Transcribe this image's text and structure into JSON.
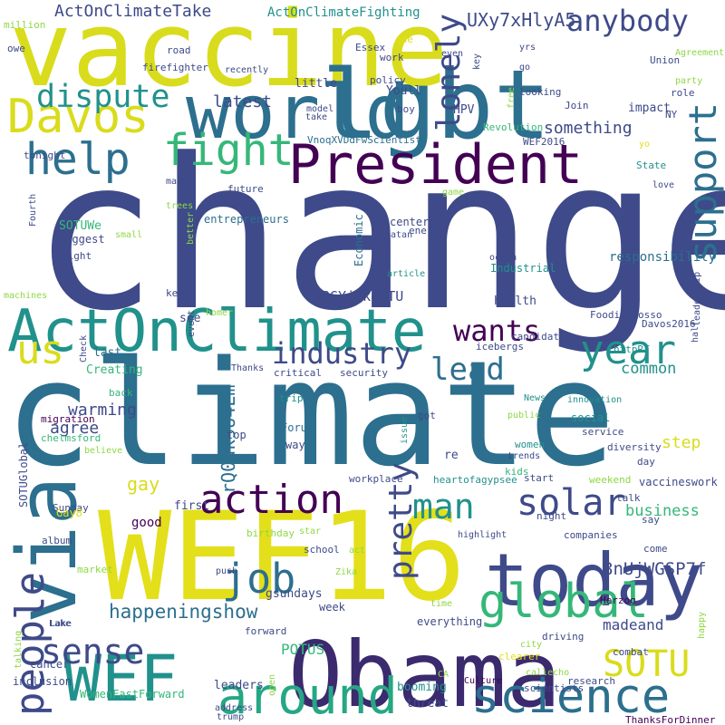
{
  "palette": {
    "yellow": "#e3df1a",
    "lightgreen": "#8fd744",
    "green": "#35b779",
    "teal": "#21918c",
    "blue": "#2c6f8e",
    "indigo": "#3e4a89",
    "purple": "#440154"
  },
  "words": [
    {
      "text": "change",
      "color": "#3e4a89",
      "rot": 0
    },
    {
      "text": "climate",
      "color": "#2c6f8e",
      "rot": 0
    },
    {
      "text": "WEF16",
      "color": "#e3df1a",
      "rot": 0
    },
    {
      "text": "Obama",
      "color": "#3b2a6e",
      "rot": 0
    },
    {
      "text": "vaccine",
      "color": "#d9dc1c",
      "rot": 0
    },
    {
      "text": "lgbt",
      "color": "#2c6f8e",
      "rot": 0
    },
    {
      "text": "world",
      "color": "#2c6f8e",
      "rot": 0
    },
    {
      "text": "President",
      "color": "#440154",
      "rot": 0
    },
    {
      "text": "ActOnClimate",
      "color": "#21918c",
      "rot": 0
    },
    {
      "text": "today",
      "color": "#3e4a89",
      "rot": 0
    },
    {
      "text": "WEF",
      "color": "#21918c",
      "rot": 0
    },
    {
      "text": "via",
      "color": "#2c6f8e",
      "rot": 90
    },
    {
      "text": "Davos",
      "color": "#d9dc1c",
      "rot": 0
    },
    {
      "text": "around",
      "color": "#26a784",
      "rot": 0
    },
    {
      "text": "science",
      "color": "#2c6f8e",
      "rot": 0
    },
    {
      "text": "global",
      "color": "#35b779",
      "rot": 0
    },
    {
      "text": "help",
      "color": "#2c6f8e",
      "rot": 0
    },
    {
      "text": "fight",
      "color": "#35b779",
      "rot": 0
    },
    {
      "text": "support",
      "color": "#2c6f8e",
      "rot": 90
    },
    {
      "text": "dispute",
      "color": "#21918c",
      "rot": 0
    },
    {
      "text": "anybody",
      "color": "#3e4a89",
      "rot": 0
    },
    {
      "text": "action",
      "color": "#440154",
      "rot": 0
    },
    {
      "text": "solar",
      "color": "#3e4a89",
      "rot": 0
    },
    {
      "text": "man",
      "color": "#21918c",
      "rot": 0
    },
    {
      "text": "SOTU",
      "color": "#d9dc1c",
      "rot": 0
    },
    {
      "text": "year",
      "color": "#21918c",
      "rot": 0
    },
    {
      "text": "wants",
      "color": "#440154",
      "rot": 0
    },
    {
      "text": "job",
      "color": "#2c6f8e",
      "rot": 0
    },
    {
      "text": "sense",
      "color": "#3e4a89",
      "rot": 0
    },
    {
      "text": "people",
      "color": "#3e4a89",
      "rot": 90
    },
    {
      "text": "us",
      "color": "#d9dc1c",
      "rot": 0
    },
    {
      "text": "industry",
      "color": "#3e4a89",
      "rot": 0
    },
    {
      "text": "lead",
      "color": "#2c6f8e",
      "rot": 0
    },
    {
      "text": "pretty",
      "color": "#3e4a89",
      "rot": 90
    },
    {
      "text": "lonely",
      "color": "#3e4a89",
      "rot": 90
    },
    {
      "text": "UXy7xHlyA5",
      "color": "#3e4a89",
      "rot": 0
    },
    {
      "text": "ActOnClimateTake",
      "color": "#3e4a89",
      "rot": 0
    },
    {
      "text": "ActOnClimateFighting",
      "color": "#21918c",
      "rot": 0
    },
    {
      "text": "happeningshow",
      "color": "#2c6f8e",
      "rot": 0
    },
    {
      "text": "8nUjWGSP7f",
      "color": "#3e4a89",
      "rot": 0
    },
    {
      "text": "madeand",
      "color": "#3e4a89",
      "rot": 0
    },
    {
      "text": "rQ0dk9U4Em",
      "color": "#2c6f8e",
      "rot": 90
    },
    {
      "text": "8GYjQkeaTU",
      "color": "#3e4a89",
      "rot": 0
    },
    {
      "text": "gay",
      "color": "#d9dc1c",
      "rot": 0
    },
    {
      "text": "agree",
      "color": "#3e4a89",
      "rot": 0
    },
    {
      "text": "step",
      "color": "#d9dc1c",
      "rot": 0
    },
    {
      "text": "warming",
      "color": "#3e4a89",
      "rot": 0
    },
    {
      "text": "latest",
      "color": "#3e4a89",
      "rot": 0
    },
    {
      "text": "something",
      "color": "#3e4a89",
      "rot": 0
    },
    {
      "text": "responsibility",
      "color": "#2c6f8e",
      "rot": 0
    },
    {
      "text": "business",
      "color": "#35b779",
      "rot": 0
    },
    {
      "text": "common",
      "color": "#21918c",
      "rot": 0
    },
    {
      "text": "POTUS",
      "color": "#35b779",
      "rot": 0
    },
    {
      "text": "leaders",
      "color": "#3e4a89",
      "rot": 0
    },
    {
      "text": "WomenFastForward",
      "color": "#35b779",
      "rot": 0
    },
    {
      "text": "gsundays",
      "color": "#3e4a89",
      "rot": 0
    },
    {
      "text": "booming",
      "color": "#21918c",
      "rot": 0
    },
    {
      "text": "threat",
      "color": "#3e4a89",
      "rot": 0
    },
    {
      "text": "Youll",
      "color": "#3e4a89",
      "rot": 0
    },
    {
      "text": "HPV",
      "color": "#3e4a89",
      "rot": 0
    },
    {
      "text": "little",
      "color": "#3e4a89",
      "rot": 0
    },
    {
      "text": "impact",
      "color": "#3e4a89",
      "rot": 0
    },
    {
      "text": "Creating",
      "color": "#35b779",
      "rot": 0
    },
    {
      "text": "last",
      "color": "#2c6f8e",
      "rot": 0
    },
    {
      "text": "health",
      "color": "#3e4a89",
      "rot": 0
    },
    {
      "text": "SOTUWe",
      "color": "#35b779",
      "rot": 0
    },
    {
      "text": "biggest",
      "color": "#3e4a89",
      "rot": 0
    },
    {
      "text": "entrepreneurs",
      "color": "#2c6f8e",
      "rot": 0
    },
    {
      "text": "see",
      "color": "#3e4a89",
      "rot": 0
    },
    {
      "text": "Economic",
      "color": "#2c6f8e",
      "rot": 90
    },
    {
      "text": "Industrial",
      "color": "#21918c",
      "rot": 0
    },
    {
      "text": "center",
      "color": "#3e4a89",
      "rot": 0
    },
    {
      "text": "energy",
      "color": "#3e4a89",
      "rot": 0
    },
    {
      "text": "Revolution",
      "color": "#35b779",
      "rot": 0
    },
    {
      "text": "VnoqXVDdFwScientists",
      "color": "#2c6f8e",
      "rot": 0
    },
    {
      "text": "WEF2016",
      "color": "#3e4a89",
      "rot": 0
    },
    {
      "text": "Join",
      "color": "#3e4a89",
      "rot": 0
    },
    {
      "text": "boy",
      "color": "#3e4a89",
      "rot": 0
    },
    {
      "text": "policy",
      "color": "#3e4a89",
      "rot": 0
    },
    {
      "text": "Essex",
      "color": "#3e4a89",
      "rot": 0
    },
    {
      "text": "work",
      "color": "#3e4a89",
      "rot": 0
    },
    {
      "text": "looking",
      "color": "#3e4a89",
      "rot": 0
    },
    {
      "text": "role",
      "color": "#3e4a89",
      "rot": 0
    },
    {
      "text": "NY",
      "color": "#3e4a89",
      "rot": 0
    },
    {
      "text": "Union",
      "color": "#3e4a89",
      "rot": 0
    },
    {
      "text": "party",
      "color": "#8fd744",
      "rot": 0
    },
    {
      "text": "Agreement",
      "color": "#8fd744",
      "rot": 0
    },
    {
      "text": "yrs",
      "color": "#3e4a89",
      "rot": 0
    },
    {
      "text": "go",
      "color": "#3e4a89",
      "rot": 0
    },
    {
      "text": "even",
      "color": "#3e4a89",
      "rot": 0
    },
    {
      "text": "key",
      "color": "#3e4a89",
      "rot": 90
    },
    {
      "text": "one",
      "color": "#e3df1a",
      "rot": 0
    },
    {
      "text": "million",
      "color": "#8fd744",
      "rot": 0
    },
    {
      "text": "road",
      "color": "#3e4a89",
      "rot": 0
    },
    {
      "text": "recently",
      "color": "#3e4a89",
      "rot": 0
    },
    {
      "text": "owe",
      "color": "#3e4a89",
      "rot": 0
    },
    {
      "text": "model",
      "color": "#3e4a89",
      "rot": 0
    },
    {
      "text": "take",
      "color": "#3e4a89",
      "rot": 0
    },
    {
      "text": "firefighter",
      "color": "#3e4a89",
      "rot": 0
    },
    {
      "text": "free",
      "color": "#8fd744",
      "rot": 90
    },
    {
      "text": "yo",
      "color": "#e3df1a",
      "rot": 0
    },
    {
      "text": "tonight",
      "color": "#3e4a89",
      "rot": 0
    },
    {
      "text": "makes",
      "color": "#3e4a89",
      "rot": 0
    },
    {
      "text": "trees",
      "color": "#8fd744",
      "rot": 0
    },
    {
      "text": "future",
      "color": "#3e4a89",
      "rot": 0
    },
    {
      "text": "game",
      "color": "#8fd744",
      "rot": 0
    },
    {
      "text": "may",
      "color": "#3e4a89",
      "rot": 0
    },
    {
      "text": "State",
      "color": "#21918c",
      "rot": 0
    },
    {
      "text": "love",
      "color": "#3e4a89",
      "rot": 0
    },
    {
      "text": "Fourth",
      "color": "#3e4a89",
      "rot": 90
    },
    {
      "text": "right",
      "color": "#3e4a89",
      "rot": 0
    },
    {
      "text": "small",
      "color": "#8fd744",
      "rot": 0
    },
    {
      "text": "better",
      "color": "#8fd744",
      "rot": 90
    },
    {
      "text": "machines",
      "color": "#8fd744",
      "rot": 0
    },
    {
      "text": "keep",
      "color": "#3e4a89",
      "rot": 0
    },
    {
      "text": "homer",
      "color": "#8fd744",
      "rot": 0
    },
    {
      "text": "satan",
      "color": "#3e4a89",
      "rot": 0
    },
    {
      "text": "ocean",
      "color": "#3e4a89",
      "rot": 0
    },
    {
      "text": "article",
      "color": "#21918c",
      "rot": 0
    },
    {
      "text": "leadership",
      "color": "#3e4a89",
      "rot": 90
    },
    {
      "text": "half",
      "color": "#3e4a89",
      "rot": 90
    },
    {
      "text": "Foodie_Rosso",
      "color": "#3e4a89",
      "rot": 0
    },
    {
      "text": "Davos2016",
      "color": "#3e4a89",
      "rot": 0
    },
    {
      "text": "candidates",
      "color": "#3e4a89",
      "rot": 0
    },
    {
      "text": "icebergs",
      "color": "#3e4a89",
      "rot": 0
    },
    {
      "text": "httpRT",
      "color": "#21918c",
      "rot": 0
    },
    {
      "text": "Check",
      "color": "#3e4a89",
      "rot": 90
    },
    {
      "text": "event",
      "color": "#3e4a89",
      "rot": 90
    },
    {
      "text": "Thanks",
      "color": "#3e4a89",
      "rot": 0
    },
    {
      "text": "critical",
      "color": "#3e4a89",
      "rot": 0
    },
    {
      "text": "security",
      "color": "#3e4a89",
      "rot": 0
    },
    {
      "text": "back",
      "color": "#35b779",
      "rot": 0
    },
    {
      "text": "trip",
      "color": "#21918c",
      "rot": 0
    },
    {
      "text": "News",
      "color": "#21918c",
      "rot": 0
    },
    {
      "text": "innovation",
      "color": "#21918c",
      "rot": 0
    },
    {
      "text": "migration",
      "color": "#440154",
      "rot": 0
    },
    {
      "text": "chelmsford",
      "color": "#35b779",
      "rot": 0
    },
    {
      "text": "believe",
      "color": "#8fd744",
      "rot": 0
    },
    {
      "text": "got",
      "color": "#3e4a89",
      "rot": 0
    },
    {
      "text": "issue",
      "color": "#21918c",
      "rot": 90
    },
    {
      "text": "public",
      "color": "#8fd744",
      "rot": 0
    },
    {
      "text": "social",
      "color": "#21918c",
      "rot": 0
    },
    {
      "text": "service",
      "color": "#3e4a89",
      "rot": 0
    },
    {
      "text": "diversity",
      "color": "#3e4a89",
      "rot": 0
    },
    {
      "text": "day",
      "color": "#3e4a89",
      "rot": 0
    },
    {
      "text": "trends",
      "color": "#3e4a89",
      "rot": 0
    },
    {
      "text": "women",
      "color": "#21918c",
      "rot": 0
    },
    {
      "text": "kids",
      "color": "#35b779",
      "rot": 0
    },
    {
      "text": "top",
      "color": "#3e4a89",
      "rot": 0
    },
    {
      "text": "Forum",
      "color": "#2c6f8e",
      "rot": 0
    },
    {
      "text": "way",
      "color": "#3e4a89",
      "rot": 0
    },
    {
      "text": "re",
      "color": "#3e4a89",
      "rot": 0
    },
    {
      "text": "SOTUGlobal",
      "color": "#3e4a89",
      "rot": 90
    },
    {
      "text": "Sunday",
      "color": "#3e4a89",
      "rot": 0
    },
    {
      "text": "album",
      "color": "#3e4a89",
      "rot": 0
    },
    {
      "text": "Gay8",
      "color": "#e3df1a",
      "rot": 0
    },
    {
      "text": "first",
      "color": "#3e4a89",
      "rot": 0
    },
    {
      "text": "good",
      "color": "#440154",
      "rot": 0
    },
    {
      "text": "birthday",
      "color": "#8fd744",
      "rot": 0
    },
    {
      "text": "star",
      "color": "#8fd744",
      "rot": 0
    },
    {
      "text": "workplace",
      "color": "#3e4a89",
      "rot": 0
    },
    {
      "text": "heartofagypsee",
      "color": "#21918c",
      "rot": 0
    },
    {
      "text": "start",
      "color": "#3e4a89",
      "rot": 0
    },
    {
      "text": "weekend",
      "color": "#8fd744",
      "rot": 0
    },
    {
      "text": "vaccineswork",
      "color": "#3e4a89",
      "rot": 0
    },
    {
      "text": "talk",
      "color": "#3e4a89",
      "rot": 0
    },
    {
      "text": "say",
      "color": "#3e4a89",
      "rot": 0
    },
    {
      "text": "night",
      "color": "#3e4a89",
      "rot": 0
    },
    {
      "text": "companies",
      "color": "#3e4a89",
      "rot": 0
    },
    {
      "text": "come",
      "color": "#3e4a89",
      "rot": 0
    },
    {
      "text": "school",
      "color": "#3e4a89",
      "rot": 0
    },
    {
      "text": "act",
      "color": "#8fd744",
      "rot": 0
    },
    {
      "text": "highlight",
      "color": "#3e4a89",
      "rot": 0
    },
    {
      "text": "market",
      "color": "#8fd744",
      "rot": 0
    },
    {
      "text": "push",
      "color": "#3e4a89",
      "rot": 0
    },
    {
      "text": "Zika",
      "color": "#8fd744",
      "rot": 0
    },
    {
      "text": "week",
      "color": "#3e4a89",
      "rot": 0
    },
    {
      "text": "time",
      "color": "#8fd744",
      "rot": 0
    },
    {
      "text": "Herzog",
      "color": "#440154",
      "rot": 0
    },
    {
      "text": "Lake",
      "color": "#3e4a89",
      "rot": 0
    },
    {
      "text": "forward",
      "color": "#3e4a89",
      "rot": 0
    },
    {
      "text": "everything",
      "color": "#3e4a89",
      "rot": 0
    },
    {
      "text": "driving",
      "color": "#3e4a89",
      "rot": 0
    },
    {
      "text": "city",
      "color": "#8fd744",
      "rot": 0
    },
    {
      "text": "combat",
      "color": "#3e4a89",
      "rot": 0
    },
    {
      "text": "talking",
      "color": "#8fd744",
      "rot": 90
    },
    {
      "text": "inclusion",
      "color": "#3e4a89",
      "rot": 0
    },
    {
      "text": "cancer",
      "color": "#3e4a89",
      "rot": 0
    },
    {
      "text": "address",
      "color": "#3e4a89",
      "rot": 0
    },
    {
      "text": "trump",
      "color": "#3e4a89",
      "rot": 0
    },
    {
      "text": "open",
      "color": "#8fd744",
      "rot": 90
    },
    {
      "text": "clearer",
      "color": "#e3df1a",
      "rot": 0
    },
    {
      "text": "CA",
      "color": "#8fd744",
      "rot": 0
    },
    {
      "text": "callecho",
      "color": "#8fd744",
      "rot": 0
    },
    {
      "text": "Culture",
      "color": "#440154",
      "rot": 0
    },
    {
      "text": "scientists",
      "color": "#3e4a89",
      "rot": 0
    },
    {
      "text": "research",
      "color": "#3e4a89",
      "rot": 0
    },
    {
      "text": "happy",
      "color": "#8fd744",
      "rot": 90
    },
    {
      "text": "ThanksForDinner",
      "color": "#440154",
      "rot": 0
    },
    {
      "text": "Lake",
      "color": "#3e4a89",
      "rot": 0
    }
  ]
}
